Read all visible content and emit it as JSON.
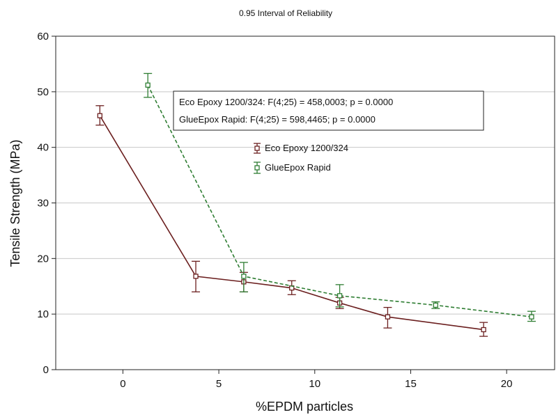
{
  "chart_data": {
    "type": "line",
    "title": "0.95 Interval of Reliability",
    "xlabel": "%EPDM particles",
    "ylabel": "Tensile Strength (MPa)",
    "xlim": [
      -3.5,
      22.5
    ],
    "ylim": [
      0,
      60
    ],
    "x_ticks": [
      0,
      5,
      10,
      15,
      20
    ],
    "y_ticks": [
      0,
      10,
      20,
      30,
      40,
      50,
      60
    ],
    "grid": "horizontal",
    "legend_position": "center",
    "series": [
      {
        "name": "Eco Epoxy 1200/324",
        "color": "#6b1f1f",
        "line_style": "solid",
        "points": [
          {
            "x": -1.2,
            "y": 45.7,
            "lo": 44.0,
            "hi": 47.5
          },
          {
            "x": 3.8,
            "y": 16.8,
            "lo": 14.0,
            "hi": 19.5
          },
          {
            "x": 6.3,
            "y": 15.8,
            "lo": 14.0,
            "hi": 17.5
          },
          {
            "x": 8.8,
            "y": 14.7,
            "lo": 13.5,
            "hi": 16.0
          },
          {
            "x": 11.3,
            "y": 12.0,
            "lo": 11.0,
            "hi": 13.0
          },
          {
            "x": 13.8,
            "y": 9.5,
            "lo": 7.5,
            "hi": 11.2
          },
          {
            "x": 18.8,
            "y": 7.2,
            "lo": 6.0,
            "hi": 8.5
          }
        ]
      },
      {
        "name": "GlueEpox Rapid",
        "color": "#2e7d32",
        "line_style": "dashed",
        "points": [
          {
            "x": 1.3,
            "y": 51.2,
            "lo": 49.0,
            "hi": 53.3
          },
          {
            "x": 6.3,
            "y": 16.8,
            "lo": 14.0,
            "hi": 19.3
          },
          {
            "x": 11.3,
            "y": 13.3,
            "lo": 11.3,
            "hi": 15.3
          },
          {
            "x": 16.3,
            "y": 11.6,
            "lo": 11.0,
            "hi": 12.2
          },
          {
            "x": 21.3,
            "y": 9.5,
            "lo": 8.7,
            "hi": 10.5
          }
        ]
      }
    ],
    "stats_box": [
      "Eco Epoxy 1200/324:   F(4;25) = 458,0003; p = 0.0000",
      "GlueEpox Rapid:   F(4;25) = 598,4465; p = 0.0000"
    ]
  }
}
